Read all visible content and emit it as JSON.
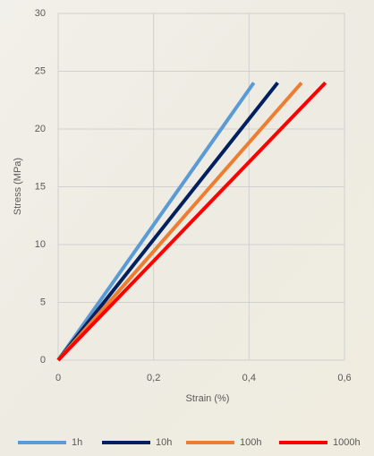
{
  "chart_data": {
    "type": "line",
    "x_label": "Strain (%)",
    "y_label": "Stress (MPa)",
    "xlim": [
      0,
      0.6
    ],
    "ylim": [
      0,
      30
    ],
    "xticks": [
      0,
      {
        "value": 0.2,
        "label": "0,2"
      },
      {
        "value": 0.4,
        "label": "0,4"
      },
      {
        "value": 0.6,
        "label": "0,6"
      }
    ],
    "yticks": [
      0,
      5,
      10,
      15,
      20,
      25,
      30
    ],
    "grid": true,
    "legend": "bottom",
    "series": [
      {
        "name": "1h",
        "color": "#5b9bd5",
        "x": [
          0,
          0.41
        ],
        "values": [
          0,
          24
        ]
      },
      {
        "name": "10h",
        "color": "#002060",
        "x": [
          0,
          0.46
        ],
        "values": [
          0,
          24
        ]
      },
      {
        "name": "100h",
        "color": "#ed7d31",
        "x": [
          0,
          0.51
        ],
        "values": [
          0,
          24
        ]
      },
      {
        "name": "1000h",
        "color": "#ff0000",
        "x": [
          0,
          0.56
        ],
        "values": [
          0,
          24
        ]
      }
    ]
  }
}
